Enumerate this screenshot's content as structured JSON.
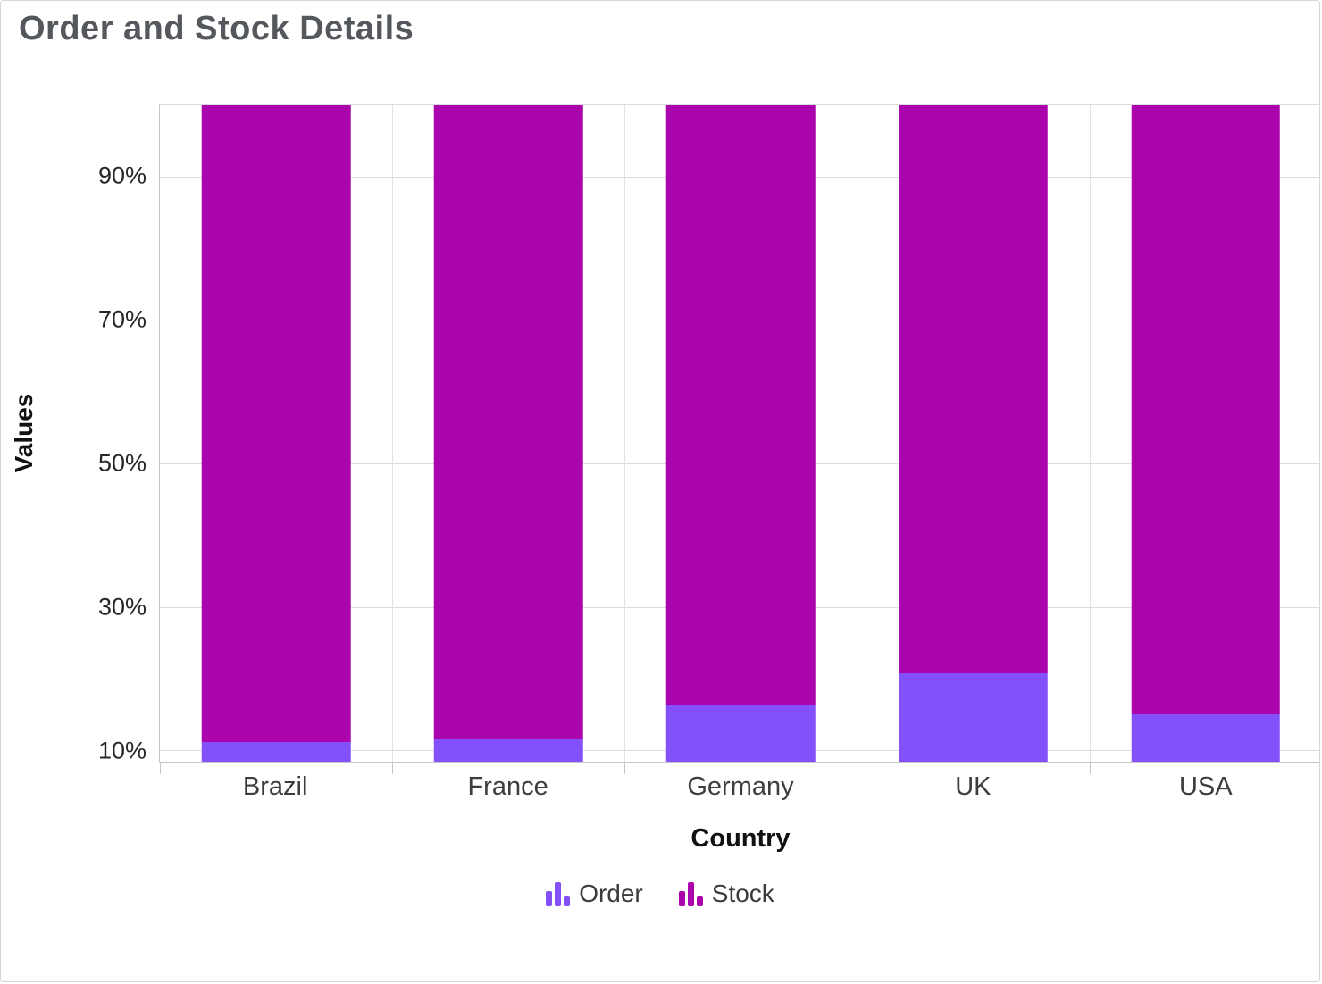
{
  "chart_data": {
    "type": "bar",
    "variant": "stacked-100",
    "title": "Order and Stock Details",
    "xlabel": "Country",
    "ylabel": "Values",
    "categories": [
      "Brazil",
      "France",
      "Germany",
      "UK",
      "USA"
    ],
    "series": [
      {
        "name": "Order",
        "color": "#8350f9",
        "values_pct": [
          11.2,
          11.5,
          16.3,
          20.8,
          15.0
        ]
      },
      {
        "name": "Stock",
        "color": "#ab04ad",
        "values_pct": [
          88.8,
          88.5,
          83.7,
          79.2,
          85.0
        ]
      }
    ],
    "yticks": [
      10,
      30,
      50,
      70,
      90
    ],
    "ytick_suffix": "%",
    "ylim_visible": [
      8.4,
      100
    ],
    "grid": true,
    "legend_position": "bottom",
    "legend_marker": "bar-chart-icon"
  },
  "styles": {
    "title_color": "#54585d",
    "order_color": "#8350f9",
    "stock_color": "#ab04ad"
  }
}
